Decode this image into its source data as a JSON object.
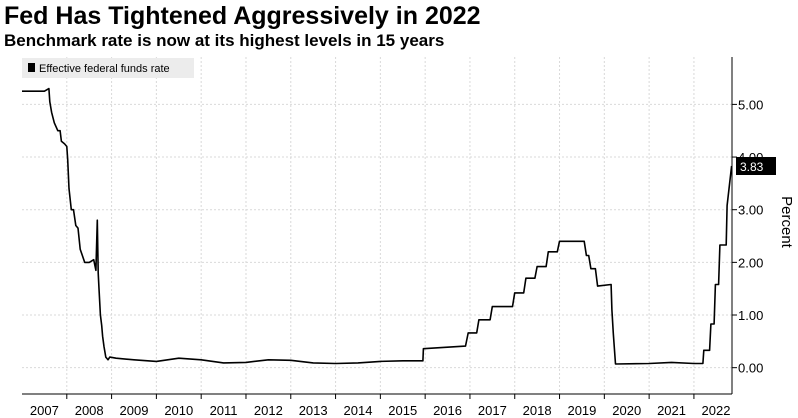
{
  "title": "Fed Has Tightened Aggressively in 2022",
  "subtitle": "Benchmark rate is now at its highest levels in 15 years",
  "chart_data": {
    "type": "line",
    "ylabel": "Percent",
    "ylim": [
      -0.5,
      5.9
    ],
    "xlim": [
      2007.0,
      2022.85
    ],
    "grid": true,
    "legend": {
      "position": "top-left",
      "entries": [
        "Effective federal funds rate"
      ]
    },
    "last_value_label": "3.83",
    "y_ticks": [
      {
        "value": 0,
        "label": "0.00"
      },
      {
        "value": 1,
        "label": "1.00"
      },
      {
        "value": 2,
        "label": "2.00"
      },
      {
        "value": 3,
        "label": "3.00"
      },
      {
        "value": 4,
        "label": "4.00"
      },
      {
        "value": 5,
        "label": "5.00"
      }
    ],
    "x_ticks": [
      "2007",
      "2008",
      "2009",
      "2010",
      "2011",
      "2012",
      "2013",
      "2014",
      "2015",
      "2016",
      "2017",
      "2018",
      "2019",
      "2020",
      "2021",
      "2022"
    ],
    "series": [
      {
        "name": "Effective federal funds rate",
        "color": "#000000",
        "x": [
          2007.0,
          2007.5,
          2007.6,
          2007.62,
          2007.66,
          2007.72,
          2007.8,
          2007.85,
          2007.88,
          2007.95,
          2008.0,
          2008.02,
          2008.05,
          2008.1,
          2008.15,
          2008.2,
          2008.25,
          2008.3,
          2008.4,
          2008.5,
          2008.6,
          2008.65,
          2008.68,
          2008.7,
          2008.72,
          2008.75,
          2008.78,
          2008.8,
          2008.83,
          2008.87,
          2008.92,
          2008.96,
          2009.1,
          2009.5,
          2010.0,
          2010.5,
          2011.0,
          2011.5,
          2012.0,
          2012.5,
          2013.0,
          2013.5,
          2014.0,
          2014.5,
          2015.0,
          2015.5,
          2015.95,
          2015.96,
          2016.9,
          2016.96,
          2017.15,
          2017.2,
          2017.45,
          2017.5,
          2017.95,
          2018.0,
          2018.2,
          2018.25,
          2018.45,
          2018.5,
          2018.7,
          2018.75,
          2018.95,
          2019.0,
          2019.45,
          2019.5,
          2019.55,
          2019.6,
          2019.65,
          2019.7,
          2019.8,
          2019.85,
          2020.15,
          2020.17,
          2020.2,
          2020.25,
          2021.0,
          2021.5,
          2022.0,
          2022.2,
          2022.22,
          2022.35,
          2022.38,
          2022.45,
          2022.48,
          2022.55,
          2022.58,
          2022.72,
          2022.74,
          2022.84
        ],
        "y": [
          5.25,
          5.25,
          5.3,
          5.05,
          4.85,
          4.65,
          4.5,
          4.5,
          4.3,
          4.25,
          4.2,
          3.95,
          3.4,
          3.0,
          3.0,
          2.7,
          2.65,
          2.25,
          2.0,
          2.0,
          2.05,
          1.85,
          2.8,
          1.8,
          1.5,
          1.0,
          0.8,
          0.6,
          0.4,
          0.2,
          0.15,
          0.2,
          0.18,
          0.15,
          0.12,
          0.18,
          0.15,
          0.09,
          0.1,
          0.15,
          0.14,
          0.09,
          0.08,
          0.09,
          0.12,
          0.13,
          0.13,
          0.36,
          0.41,
          0.66,
          0.66,
          0.91,
          0.91,
          1.16,
          1.16,
          1.42,
          1.42,
          1.7,
          1.7,
          1.92,
          1.92,
          2.2,
          2.2,
          2.4,
          2.4,
          2.4,
          2.4,
          2.13,
          2.13,
          1.88,
          1.88,
          1.55,
          1.58,
          1.1,
          0.65,
          0.07,
          0.08,
          0.1,
          0.08,
          0.08,
          0.33,
          0.33,
          0.83,
          0.83,
          1.58,
          1.58,
          2.33,
          2.33,
          3.08,
          3.83
        ]
      }
    ]
  }
}
